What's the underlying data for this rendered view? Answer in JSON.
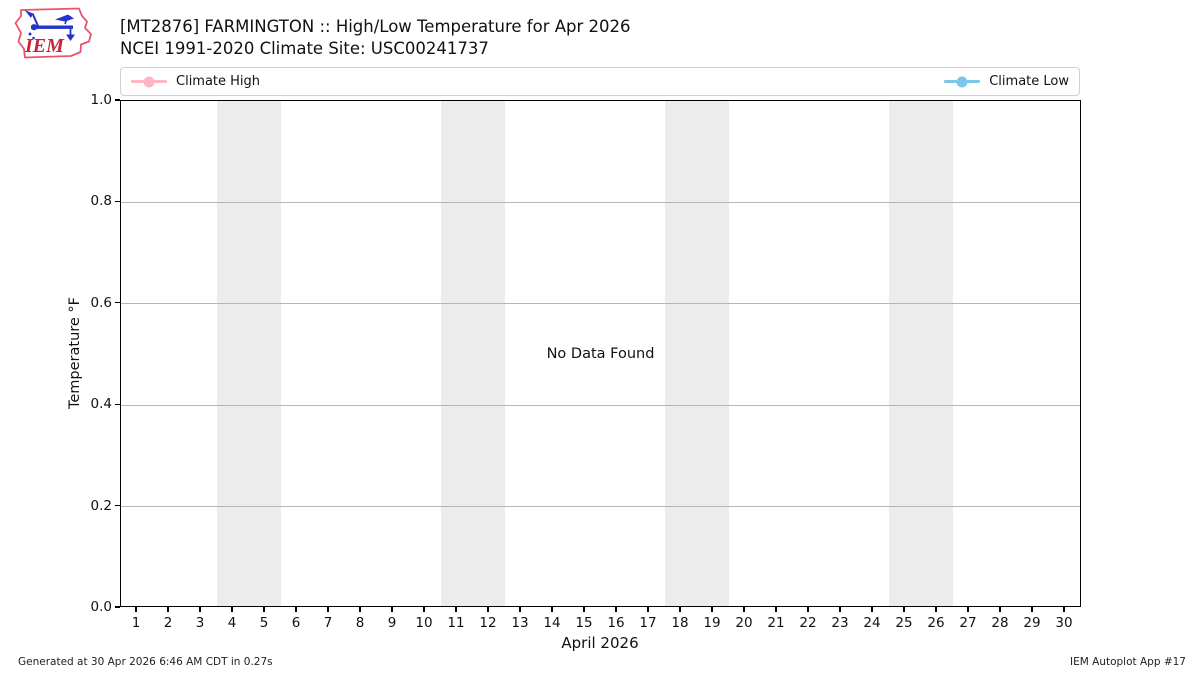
{
  "header": {
    "title": "[MT2876] FARMINGTON :: High/Low Temperature for Apr 2026",
    "subtitle": "NCEI 1991-2020 Climate Site: USC00241737"
  },
  "logo": {
    "text": "IEM",
    "outline_color": "#e8556a",
    "instrument_color": "#2333cc",
    "text_color": "#cc2235"
  },
  "legend": {
    "items": [
      {
        "label": "Climate High",
        "color": "#ffb6c1"
      },
      {
        "label": "Climate Low",
        "color": "#7cc6e8"
      }
    ]
  },
  "chart_data": {
    "type": "line",
    "title": "[MT2876] FARMINGTON :: High/Low Temperature for Apr 2026",
    "subtitle": "NCEI 1991-2020 Climate Site: USC00241737",
    "xlabel": "April 2026",
    "ylabel": "Temperature °F",
    "xlim": [
      0.5,
      30.5
    ],
    "ylim": [
      0.0,
      1.0
    ],
    "x_ticks": [
      1,
      2,
      3,
      4,
      5,
      6,
      7,
      8,
      9,
      10,
      11,
      12,
      13,
      14,
      15,
      16,
      17,
      18,
      19,
      20,
      21,
      22,
      23,
      24,
      25,
      26,
      27,
      28,
      29,
      30
    ],
    "y_ticks": [
      0.0,
      0.2,
      0.4,
      0.6,
      0.8,
      1.0
    ],
    "series": [
      {
        "name": "Climate High",
        "color": "#ffb6c1",
        "x": [],
        "y": []
      },
      {
        "name": "Climate Low",
        "color": "#7cc6e8",
        "x": [],
        "y": []
      }
    ],
    "no_data_text": "No Data Found",
    "weekend_bands": [
      [
        3.5,
        5.5
      ],
      [
        10.5,
        12.5
      ],
      [
        17.5,
        19.5
      ],
      [
        24.5,
        26.5
      ]
    ],
    "band_color": "#ececec",
    "grid": true,
    "grid_color": "#b6b6b6",
    "legend_position": "top"
  },
  "footer": {
    "left": "Generated at 30 Apr 2026 6:46 AM CDT in 0.27s",
    "right": "IEM Autoplot App #17"
  }
}
